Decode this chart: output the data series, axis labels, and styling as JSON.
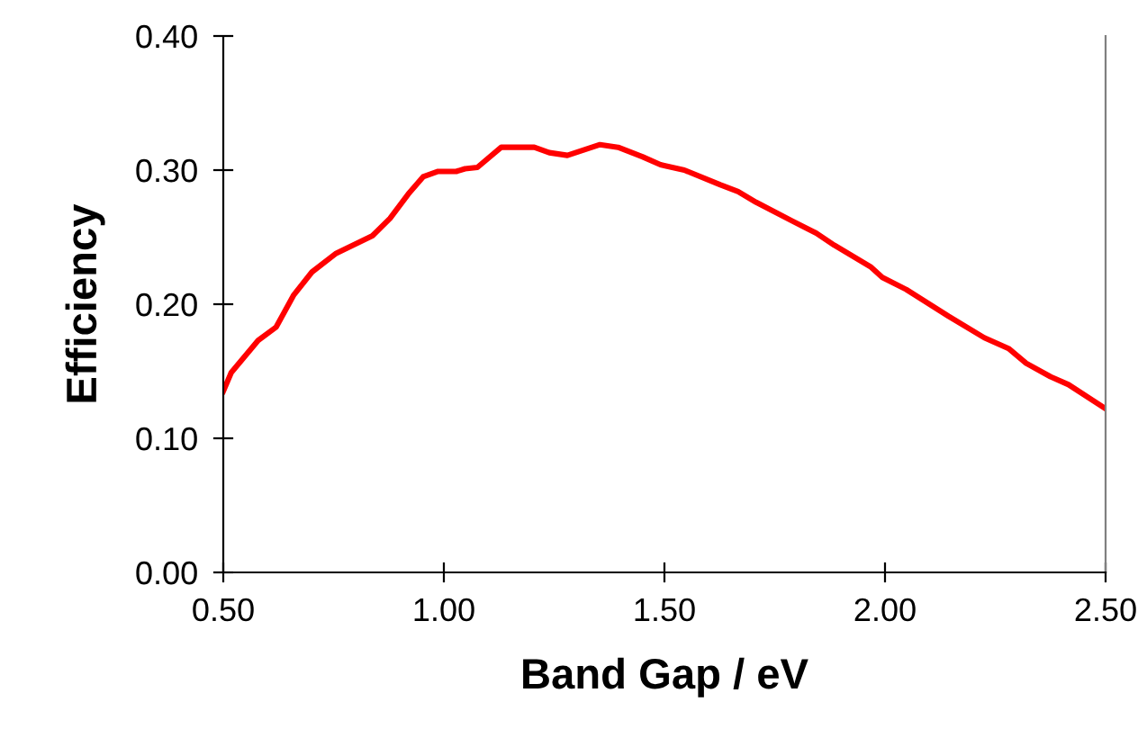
{
  "chart_data": {
    "type": "line",
    "xlabel": "Band Gap / eV",
    "ylabel": "Efficiency",
    "xlim": [
      0.5,
      2.5
    ],
    "ylim": [
      0,
      0.4
    ],
    "xticks": [
      {
        "value": 0.5,
        "label": "0.50"
      },
      {
        "value": 1.0,
        "label": "1.00"
      },
      {
        "value": 1.5,
        "label": "1.50"
      },
      {
        "value": 2.0,
        "label": "2.00"
      },
      {
        "value": 2.5,
        "label": "2.50"
      }
    ],
    "yticks": [
      {
        "value": 0,
        "label": "0.00"
      },
      {
        "value": 0.1,
        "label": "0.10"
      },
      {
        "value": 0.2,
        "label": "0.20"
      },
      {
        "value": 0.3,
        "label": "0.30"
      },
      {
        "value": 0.4,
        "label": "0.40"
      }
    ],
    "grid": false,
    "legend": false,
    "marker": "none",
    "line_style": "solid",
    "series": [
      {
        "color": "#ff0000",
        "x": [
          0.5,
          0.518,
          0.579,
          0.62,
          0.66,
          0.701,
          0.756,
          0.838,
          0.878,
          0.919,
          0.953,
          0.987,
          1.028,
          1.048,
          1.076,
          1.13,
          1.205,
          1.239,
          1.28,
          1.354,
          1.395,
          1.45,
          1.491,
          1.504,
          1.545,
          1.627,
          1.667,
          1.708,
          1.79,
          1.844,
          1.885,
          1.967,
          1.994,
          2.048,
          2.144,
          2.225,
          2.28,
          2.32,
          2.375,
          2.416,
          2.5
        ],
        "values": [
          0.135,
          0.149,
          0.173,
          0.183,
          0.207,
          0.224,
          0.238,
          0.251,
          0.264,
          0.282,
          0.295,
          0.299,
          0.299,
          0.301,
          0.302,
          0.317,
          0.317,
          0.313,
          0.311,
          0.319,
          0.317,
          0.31,
          0.304,
          0.303,
          0.3,
          0.289,
          0.284,
          0.276,
          0.262,
          0.253,
          0.244,
          0.228,
          0.22,
          0.211,
          0.191,
          0.175,
          0.167,
          0.156,
          0.146,
          0.14,
          0.122
        ]
      }
    ]
  }
}
